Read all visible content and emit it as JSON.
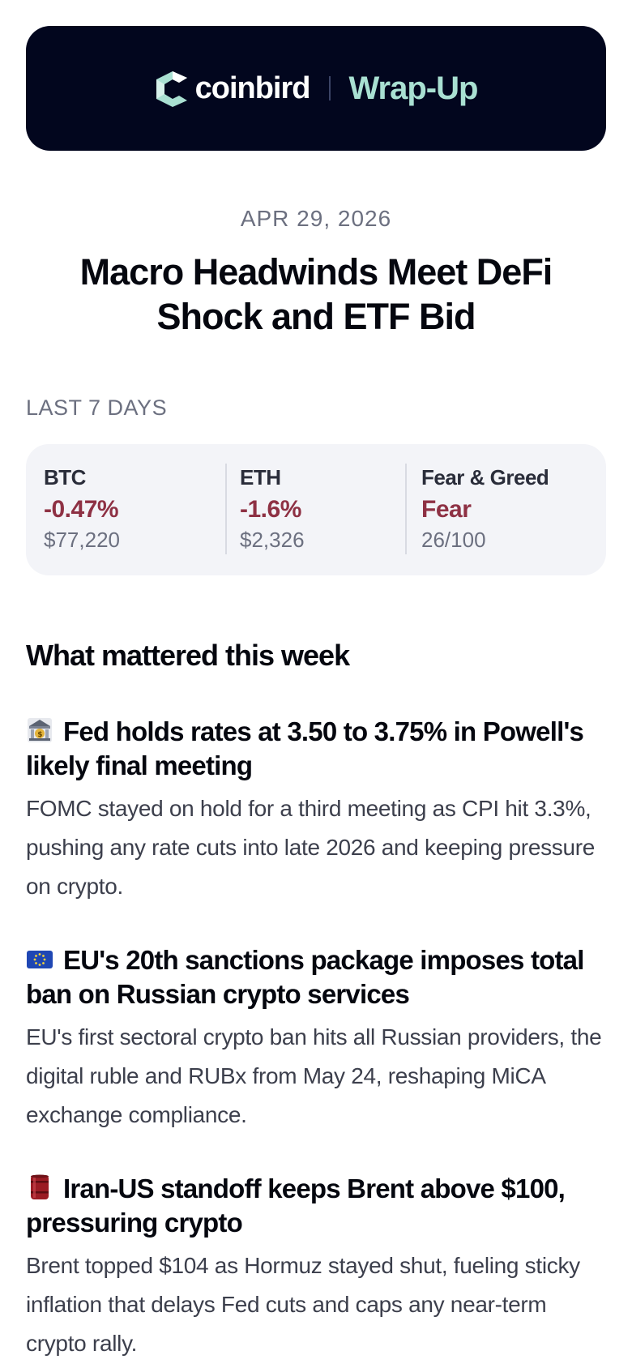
{
  "header": {
    "brand": "coinbird",
    "product": "Wrap-Up"
  },
  "date": "APR 29, 2026",
  "title": "Macro Headwinds Meet DeFi Shock and ETF Bid",
  "period_label": "LAST 7 DAYS",
  "stats": [
    {
      "label": "BTC",
      "change": "-0.47%",
      "sub": "$77,220"
    },
    {
      "label": "ETH",
      "change": "-1.6%",
      "sub": "$2,326"
    },
    {
      "label": "Fear & Greed",
      "change": "Fear",
      "sub": "26/100"
    }
  ],
  "section_title": "What mattered this week",
  "items": [
    {
      "icon": "bank-icon",
      "headline": "Fed holds rates at 3.50 to 3.75% in Powell's likely final meeting",
      "body": "FOMC stayed on hold for a third meeting as CPI hit 3.3%, pushing any rate cuts into late 2026 and keeping pressure on crypto."
    },
    {
      "icon": "eu-flag-icon",
      "headline": "EU's 20th sanctions package imposes total ban on Russian crypto services",
      "body": "EU's first sectoral crypto ban hits all Russian providers, the digital ruble and RUBx from May 24, reshaping MiCA exchange compliance."
    },
    {
      "icon": "oil-barrel-icon",
      "headline": "Iran-US standoff keeps Brent above $100, pressuring crypto",
      "body": "Brent topped $104 as Hormuz stayed shut, fueling sticky inflation that delays Fed cuts and caps any near-term crypto rally."
    }
  ],
  "colors": {
    "header_bg": "#02061e",
    "accent": "#a9e0d2",
    "negative": "#8e3144",
    "card_bg": "#f3f4f8"
  }
}
